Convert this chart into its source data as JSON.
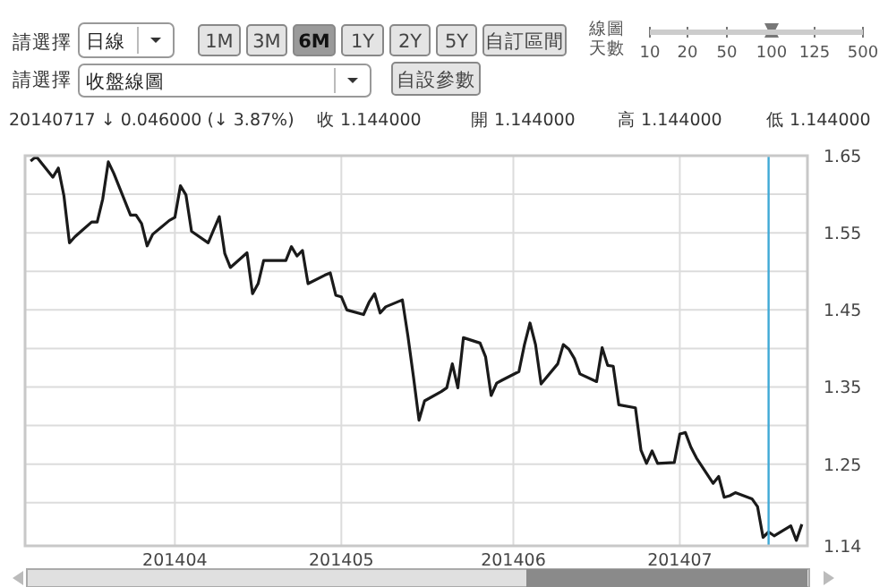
{
  "chart_data": {
    "type": "line",
    "x": [
      "2014-03-06",
      "2014-03-07",
      "2014-03-10",
      "2014-03-11",
      "2014-03-12",
      "2014-03-13",
      "2014-03-14",
      "2014-03-17",
      "2014-03-18",
      "2014-03-19",
      "2014-03-20",
      "2014-03-21",
      "2014-03-24",
      "2014-03-25",
      "2014-03-26",
      "2014-03-27",
      "2014-03-28",
      "2014-03-31",
      "2014-04-01",
      "2014-04-02",
      "2014-04-03",
      "2014-04-04",
      "2014-04-07",
      "2014-04-08",
      "2014-04-09",
      "2014-04-10",
      "2014-04-11",
      "2014-04-14",
      "2014-04-15",
      "2014-04-16",
      "2014-04-17",
      "2014-04-18",
      "2014-04-21",
      "2014-04-22",
      "2014-04-23",
      "2014-04-24",
      "2014-04-25",
      "2014-04-28",
      "2014-04-29",
      "2014-04-30",
      "2014-05-01",
      "2014-05-02",
      "2014-05-05",
      "2014-05-06",
      "2014-05-07",
      "2014-05-08",
      "2014-05-09",
      "2014-05-12",
      "2014-05-13",
      "2014-05-14",
      "2014-05-15",
      "2014-05-16",
      "2014-05-19",
      "2014-05-20",
      "2014-05-21",
      "2014-05-22",
      "2014-05-23",
      "2014-05-26",
      "2014-05-27",
      "2014-05-28",
      "2014-05-29",
      "2014-05-30",
      "2014-06-02",
      "2014-06-03",
      "2014-06-04",
      "2014-06-05",
      "2014-06-06",
      "2014-06-09",
      "2014-06-10",
      "2014-06-11",
      "2014-06-12",
      "2014-06-13",
      "2014-06-16",
      "2014-06-17",
      "2014-06-18",
      "2014-06-19",
      "2014-06-20",
      "2014-06-23",
      "2014-06-24",
      "2014-06-25",
      "2014-06-26",
      "2014-06-27",
      "2014-06-30",
      "2014-07-01",
      "2014-07-02",
      "2014-07-03",
      "2014-07-04",
      "2014-07-07",
      "2014-07-08",
      "2014-07-09",
      "2014-07-10",
      "2014-07-11",
      "2014-07-14",
      "2014-07-15",
      "2014-07-16",
      "2014-07-17",
      "2014-07-18",
      "2014-07-21",
      "2014-07-22",
      "2014-07-23"
    ],
    "series": [
      {
        "color": "#1a1a1a",
        "values": [
          1.643,
          1.649,
          1.622,
          1.634,
          1.598,
          1.537,
          1.545,
          1.564,
          1.564,
          1.594,
          1.642,
          1.627,
          1.573,
          1.573,
          1.562,
          1.533,
          1.548,
          1.566,
          1.57,
          1.611,
          1.599,
          1.552,
          1.537,
          1.554,
          1.571,
          1.523,
          1.505,
          1.524,
          1.471,
          1.484,
          1.514,
          1.514,
          1.514,
          1.532,
          1.52,
          1.527,
          1.484,
          1.495,
          1.498,
          1.469,
          1.467,
          1.45,
          1.444,
          1.46,
          1.471,
          1.446,
          1.454,
          1.463,
          1.416,
          1.363,
          1.307,
          1.332,
          1.344,
          1.349,
          1.38,
          1.349,
          1.414,
          1.407,
          1.389,
          1.339,
          1.355,
          1.359,
          1.37,
          1.405,
          1.433,
          1.405,
          1.354,
          1.38,
          1.405,
          1.399,
          1.387,
          1.367,
          1.357,
          1.401,
          1.378,
          1.377,
          1.327,
          1.323,
          1.268,
          1.251,
          1.267,
          1.251,
          1.252,
          1.289,
          1.291,
          1.272,
          1.258,
          1.225,
          1.234,
          1.207,
          1.209,
          1.213,
          1.205,
          1.195,
          1.155,
          1.162,
          1.157,
          1.17,
          1.151,
          1.172
        ]
      }
    ],
    "xlim": [
      "2014-03-05",
      "2014-07-24"
    ],
    "xticks": [
      {
        "value": "2014-04-01",
        "label": "201404"
      },
      {
        "value": "2014-05-01",
        "label": "201405"
      },
      {
        "value": "2014-06-01",
        "label": "201406"
      },
      {
        "value": "2014-07-01",
        "label": "201407"
      }
    ],
    "ylim": [
      1.144,
      1.65
    ],
    "yticks": [
      1.65,
      {
        "value": 1.6,
        "label": null
      },
      1.55,
      {
        "value": 1.5,
        "label": null
      },
      1.45,
      {
        "value": 1.4,
        "label": null
      },
      1.35,
      {
        "value": 1.3,
        "label": null
      },
      1.25,
      {
        "value": 1.2,
        "label": null
      },
      {
        "value": 1.144,
        "label": "1.14"
      }
    ],
    "grid": true,
    "marker": "none",
    "line_style": "solid",
    "ref_lines": [
      {
        "axis": "x",
        "value": "2014-07-17",
        "color": "#3fa9d6"
      }
    ],
    "annotations": [
      "請選擇",
      "日線",
      "1M",
      "3M",
      "6M",
      "1Y",
      "2Y",
      "5Y",
      "自訂區間",
      "線圖天數",
      "10",
      "20",
      "50",
      "100",
      "125",
      "500",
      "請選擇",
      "收盤線圖",
      "自設參數",
      "20140717 ↓ 0.046000 (↓ 3.87%)",
      "收 1.144000",
      "開 1.144000",
      "高 1.144000",
      "低 1.144000"
    ]
  }
}
